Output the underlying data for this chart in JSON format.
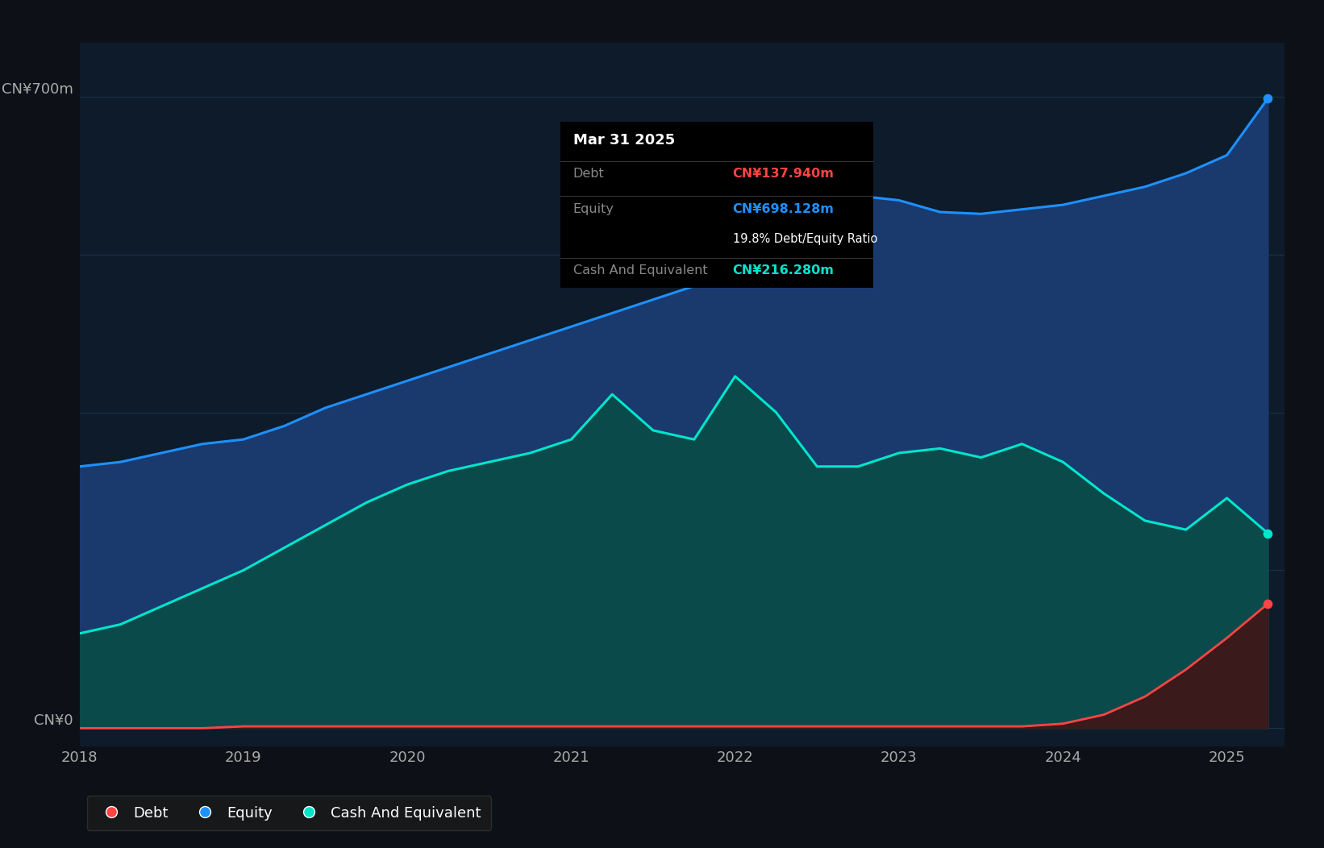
{
  "bg_color": "#0d1117",
  "plot_bg_color": "#0d1b2a",
  "ylabel_700": "CN¥700m",
  "ylabel_0": "CN¥0",
  "x_min": 2018.0,
  "x_max": 2025.35,
  "y_min": -20,
  "y_max": 760,
  "grid_color": "#1e3a4a",
  "grid_y": [
    0,
    175,
    350,
    525,
    700
  ],
  "equity_color": "#1e90ff",
  "equity_fill": "#1a3a6e",
  "cash_color": "#00e5cc",
  "cash_fill": "#0a4a4a",
  "debt_color": "#ff4444",
  "debt_fill": "#3a1a1a",
  "equity_x": [
    2018.0,
    2018.25,
    2018.5,
    2018.75,
    2019.0,
    2019.25,
    2019.5,
    2019.75,
    2020.0,
    2020.25,
    2020.5,
    2020.75,
    2021.0,
    2021.25,
    2021.5,
    2021.75,
    2022.0,
    2022.25,
    2022.5,
    2022.75,
    2023.0,
    2023.25,
    2023.5,
    2023.75,
    2024.0,
    2024.25,
    2024.5,
    2024.75,
    2025.0,
    2025.25
  ],
  "equity_y": [
    290,
    295,
    305,
    315,
    320,
    335,
    355,
    370,
    385,
    400,
    415,
    430,
    445,
    460,
    475,
    490,
    600,
    608,
    595,
    590,
    585,
    572,
    570,
    575,
    580,
    590,
    600,
    615,
    635,
    698
  ],
  "cash_x": [
    2018.0,
    2018.25,
    2018.5,
    2018.75,
    2019.0,
    2019.25,
    2019.5,
    2019.75,
    2020.0,
    2020.25,
    2020.5,
    2020.75,
    2021.0,
    2021.25,
    2021.5,
    2021.75,
    2022.0,
    2022.25,
    2022.5,
    2022.75,
    2023.0,
    2023.25,
    2023.5,
    2023.75,
    2024.0,
    2024.25,
    2024.5,
    2024.75,
    2025.0,
    2025.25
  ],
  "cash_y": [
    105,
    115,
    135,
    155,
    175,
    200,
    225,
    250,
    270,
    285,
    295,
    305,
    320,
    370,
    330,
    320,
    390,
    350,
    290,
    290,
    305,
    310,
    300,
    315,
    295,
    260,
    230,
    220,
    255,
    216
  ],
  "debt_x": [
    2018.0,
    2018.25,
    2018.5,
    2018.75,
    2019.0,
    2019.25,
    2019.5,
    2019.75,
    2020.0,
    2020.25,
    2020.5,
    2020.75,
    2021.0,
    2021.25,
    2021.5,
    2021.75,
    2022.0,
    2022.25,
    2022.5,
    2022.75,
    2023.0,
    2023.25,
    2023.5,
    2023.75,
    2024.0,
    2024.25,
    2024.5,
    2024.75,
    2025.0,
    2025.25
  ],
  "debt_y": [
    0,
    0,
    0,
    0,
    2,
    2,
    2,
    2,
    2,
    2,
    2,
    2,
    2,
    2,
    2,
    2,
    2,
    2,
    2,
    2,
    2,
    2,
    2,
    2,
    5,
    15,
    35,
    65,
    100,
    138
  ],
  "tooltip_date": "Mar 31 2025",
  "tooltip_debt_label": "Debt",
  "tooltip_debt_value": "CN¥137.940m",
  "tooltip_equity_label": "Equity",
  "tooltip_equity_value": "CN¥698.128m",
  "tooltip_ratio": "19.8% Debt/Equity Ratio",
  "tooltip_cash_label": "Cash And Equivalent",
  "tooltip_cash_value": "CN¥216.280m",
  "legend_debt": "Debt",
  "legend_equity": "Equity",
  "legend_cash": "Cash And Equivalent",
  "x_ticks": [
    2018,
    2019,
    2020,
    2021,
    2022,
    2023,
    2024,
    2025
  ],
  "x_tick_labels": [
    "2018",
    "2019",
    "2020",
    "2021",
    "2022",
    "2023",
    "2024",
    "2025"
  ]
}
